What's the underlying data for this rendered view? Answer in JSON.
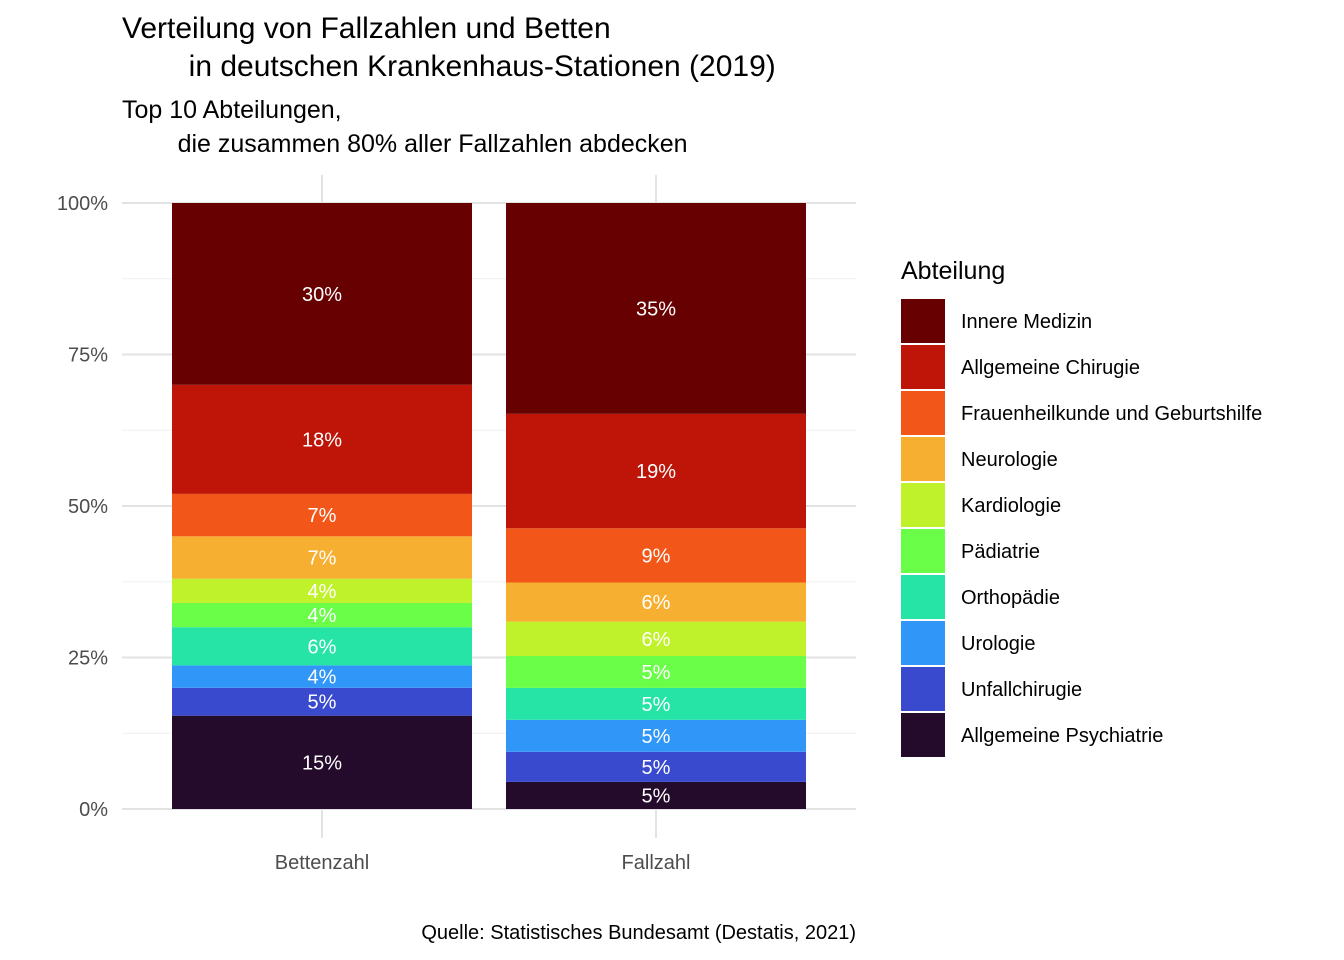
{
  "title": "Verteilung von Fallzahlen und Betten\n        in deutschen Krankenhaus-Stationen (2019)",
  "subtitle": "Top 10 Abteilungen,\n        die zusammen 80% aller Fallzahlen abdecken",
  "caption": "Quelle: Statistisches Bundesamt (Destatis, 2021)",
  "chart_data": {
    "type": "bar",
    "stacked": true,
    "orientation": "vertical",
    "categories": [
      "Bettenzahl",
      "Fallzahl"
    ],
    "y_ticks": [
      "0%",
      "25%",
      "50%",
      "75%",
      "100%"
    ],
    "ylim": [
      0,
      100
    ],
    "grid": true,
    "legend_title": "Abteilung",
    "legend_position": "right",
    "series": [
      {
        "name": "Innere Medizin",
        "color": "#670000",
        "values": [
          30,
          35
        ],
        "labels": [
          "30%",
          "35%"
        ]
      },
      {
        "name": "Allgemeine Chirugie",
        "color": "#BE1508",
        "values": [
          18,
          19
        ],
        "labels": [
          "18%",
          "19%"
        ]
      },
      {
        "name": "Frauenheilkunde und Geburtshilfe",
        "color": "#F25719",
        "values": [
          7,
          9
        ],
        "labels": [
          "7%",
          "9%"
        ]
      },
      {
        "name": "Neurologie",
        "color": "#F6AF30",
        "values": [
          7,
          6.5
        ],
        "labels": [
          "7%",
          "6%"
        ]
      },
      {
        "name": "Kardiologie",
        "color": "#C0F22C",
        "values": [
          4,
          5.7
        ],
        "labels": [
          "4%",
          "6%"
        ]
      },
      {
        "name": "Pädiatrie",
        "color": "#6BFE48",
        "values": [
          4,
          5.3
        ],
        "labels": [
          "4%",
          "5%"
        ]
      },
      {
        "name": "Orthopädie",
        "color": "#26E4A6",
        "values": [
          6.3,
          5.3
        ],
        "labels": [
          "6%",
          "5%"
        ]
      },
      {
        "name": "Urologie",
        "color": "#3097F9",
        "values": [
          3.7,
          5.3
        ],
        "labels": [
          "4%",
          "5%"
        ]
      },
      {
        "name": "Unfallchirugie",
        "color": "#3A4ACF",
        "values": [
          4.6,
          5
        ],
        "labels": [
          "5%",
          "5%"
        ]
      },
      {
        "name": "Allgemeine Psychiatrie",
        "color": "#240B2B",
        "values": [
          15.4,
          4.5
        ],
        "labels": [
          "15%",
          "5%"
        ]
      }
    ]
  }
}
